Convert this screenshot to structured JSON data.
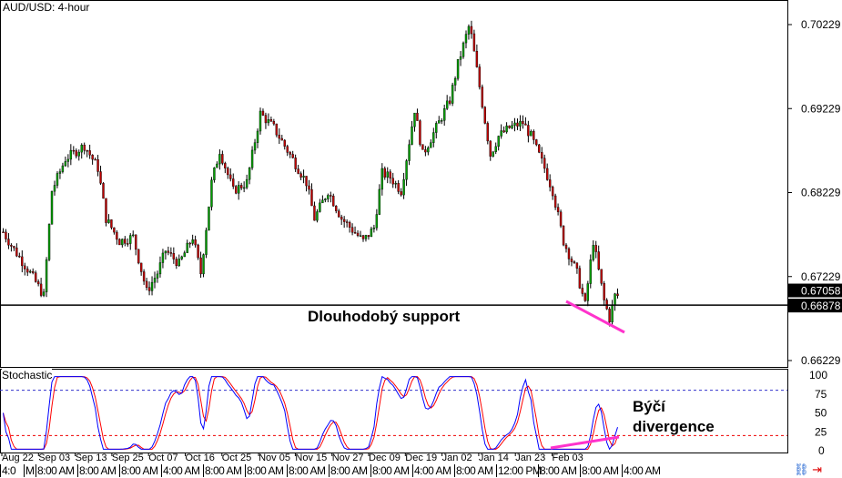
{
  "window": {
    "title": "AUD/USD: 4-hour",
    "indicator_label": "Stochastic"
  },
  "annotations": {
    "support": "Dlouhodobý support",
    "divergence_line1": "Býčí",
    "divergence_line2": "divergence"
  },
  "bottom_bar": {
    "labels": [
      "4:0",
      "",
      "M",
      "8:00 AM",
      "8:00 AM",
      "8:00 AM",
      "4:00 AM",
      "8:00 AM",
      "8:00 AM",
      "8:00 AM",
      "8:00 AM",
      "8:00 AM",
      "4:00 AM",
      "8:00 AM",
      "12:00 PM",
      "8:00 AM",
      "8:00 AM",
      "4:00 AM"
    ],
    "icons": [
      "link-icon",
      "arrow-end-icon"
    ]
  },
  "chart_data": {
    "type": "candlestick",
    "title": "AUD/USD: 4-hour",
    "y_ticks": [
      0.70229,
      0.69229,
      0.68229,
      0.67229,
      0.66229
    ],
    "ylim": [
      0.6602,
      0.7052
    ],
    "x_ticks": [
      "Aug 22",
      "Sep 03",
      "Sep 13",
      "Sep 25",
      "Oct 07",
      "Oct 16",
      "Oct 25",
      "Nov 05",
      "Nov 15",
      "Nov 27",
      "Dec 09",
      "Dec 19",
      "Jan 02",
      "Jan 14",
      "Jan 23",
      "Feb 03"
    ],
    "current_price": "0.67058",
    "support_price": "0.66878",
    "bar_count": 228,
    "close_path": [
      [
        0,
        0.6776
      ],
      [
        3,
        0.676
      ],
      [
        10,
        0.6727
      ],
      [
        15,
        0.67
      ],
      [
        18,
        0.6825
      ],
      [
        23,
        0.6863
      ],
      [
        30,
        0.6879
      ],
      [
        35,
        0.6852
      ],
      [
        38,
        0.6792
      ],
      [
        43,
        0.6765
      ],
      [
        48,
        0.677
      ],
      [
        53,
        0.6705
      ],
      [
        57,
        0.6727
      ],
      [
        60,
        0.6754
      ],
      [
        65,
        0.6738
      ],
      [
        70,
        0.677
      ],
      [
        73,
        0.6727
      ],
      [
        77,
        0.6835
      ],
      [
        80,
        0.6873
      ],
      [
        85,
        0.6825
      ],
      [
        90,
        0.6835
      ],
      [
        95,
        0.6917
      ],
      [
        100,
        0.69
      ],
      [
        105,
        0.6873
      ],
      [
        108,
        0.6857
      ],
      [
        112,
        0.6835
      ],
      [
        115,
        0.6792
      ],
      [
        120,
        0.6825
      ],
      [
        125,
        0.6792
      ],
      [
        133,
        0.6765
      ],
      [
        137,
        0.6781
      ],
      [
        140,
        0.6846
      ],
      [
        143,
        0.6841
      ],
      [
        147,
        0.6825
      ],
      [
        152,
        0.6922
      ],
      [
        155,
        0.6868
      ],
      [
        160,
        0.69
      ],
      [
        165,
        0.6933
      ],
      [
        168,
        0.6976
      ],
      [
        172,
        0.702
      ],
      [
        173,
        0.7009
      ],
      [
        176,
        0.6949
      ],
      [
        180,
        0.6868
      ],
      [
        183,
        0.689
      ],
      [
        187,
        0.69
      ],
      [
        192,
        0.6906
      ],
      [
        195,
        0.689
      ],
      [
        200,
        0.6852
      ],
      [
        203,
        0.6825
      ],
      [
        207,
        0.6765
      ],
      [
        212,
        0.6727
      ],
      [
        215,
        0.6689
      ],
      [
        218,
        0.6765
      ],
      [
        222,
        0.6694
      ],
      [
        224,
        0.6673
      ],
      [
        226,
        0.67
      ]
    ],
    "colors": {
      "up": "#00a000",
      "down": "#c00000",
      "wick": "#000000",
      "support_line": "#000000",
      "divergence": "#ff33cc",
      "stoch_k": "#0000ff",
      "stoch_d": "#ff0000"
    },
    "stochastic": {
      "ylim": [
        0,
        100
      ],
      "y_ticks": [
        100,
        75,
        50,
        25,
        0
      ],
      "levels": [
        80,
        20
      ]
    },
    "grid": false
  }
}
